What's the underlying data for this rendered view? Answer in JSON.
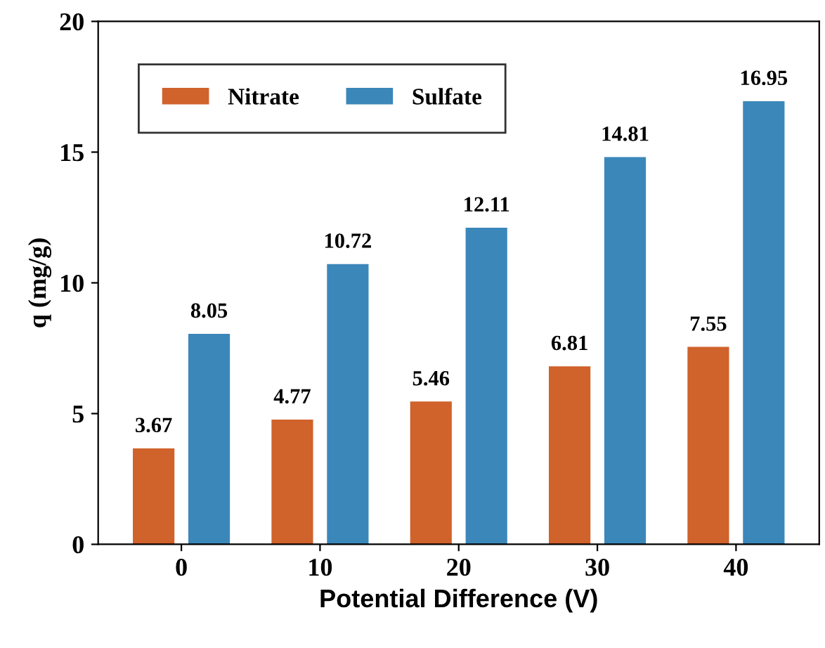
{
  "chart_data": {
    "type": "bar",
    "xlabel": "Potential Difference (V)",
    "ylabel": "q (mg/g)",
    "categories": [
      "0",
      "10",
      "20",
      "30",
      "40"
    ],
    "series": [
      {
        "name": "Nitrate",
        "color": "#d0622b",
        "values": [
          3.67,
          4.77,
          5.46,
          6.81,
          7.55
        ]
      },
      {
        "name": "Sulfate",
        "color": "#3b87ba",
        "values": [
          8.05,
          10.72,
          12.11,
          14.81,
          16.95
        ]
      }
    ],
    "ylim": [
      0,
      20
    ],
    "yticks": [
      0,
      5,
      10,
      15,
      20
    ],
    "grid": false,
    "legend": "top left",
    "data_labels": true
  }
}
